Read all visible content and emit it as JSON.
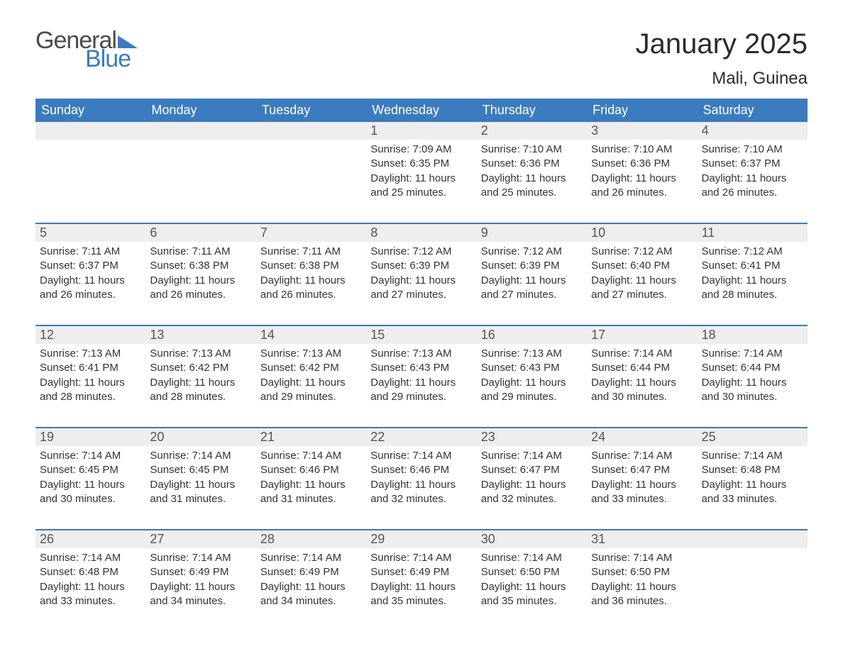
{
  "brand": {
    "part1": "General",
    "part2": "Blue"
  },
  "title": "January 2025",
  "location": "Mali, Guinea",
  "colors": {
    "brand_blue": "#3b7bbf",
    "header_bg": "#3b7bbf",
    "header_text": "#ffffff",
    "daynum_bg": "#eeeeee",
    "daynum_text": "#555555",
    "body_text": "#333333",
    "row_border": "#3b7bbf",
    "page_bg": "#ffffff"
  },
  "layout": {
    "columns": 7,
    "title_fontsize": 40,
    "location_fontsize": 24,
    "dayhead_fontsize": 18,
    "daynum_fontsize": 18,
    "cell_fontsize": 15
  },
  "day_headers": [
    "Sunday",
    "Monday",
    "Tuesday",
    "Wednesday",
    "Thursday",
    "Friday",
    "Saturday"
  ],
  "weeks": [
    [
      {
        "n": "",
        "lines": []
      },
      {
        "n": "",
        "lines": []
      },
      {
        "n": "",
        "lines": []
      },
      {
        "n": "1",
        "lines": [
          "Sunrise: 7:09 AM",
          "Sunset: 6:35 PM",
          "Daylight: 11 hours and 25 minutes."
        ]
      },
      {
        "n": "2",
        "lines": [
          "Sunrise: 7:10 AM",
          "Sunset: 6:36 PM",
          "Daylight: 11 hours and 25 minutes."
        ]
      },
      {
        "n": "3",
        "lines": [
          "Sunrise: 7:10 AM",
          "Sunset: 6:36 PM",
          "Daylight: 11 hours and 26 minutes."
        ]
      },
      {
        "n": "4",
        "lines": [
          "Sunrise: 7:10 AM",
          "Sunset: 6:37 PM",
          "Daylight: 11 hours and 26 minutes."
        ]
      }
    ],
    [
      {
        "n": "5",
        "lines": [
          "Sunrise: 7:11 AM",
          "Sunset: 6:37 PM",
          "Daylight: 11 hours and 26 minutes."
        ]
      },
      {
        "n": "6",
        "lines": [
          "Sunrise: 7:11 AM",
          "Sunset: 6:38 PM",
          "Daylight: 11 hours and 26 minutes."
        ]
      },
      {
        "n": "7",
        "lines": [
          "Sunrise: 7:11 AM",
          "Sunset: 6:38 PM",
          "Daylight: 11 hours and 26 minutes."
        ]
      },
      {
        "n": "8",
        "lines": [
          "Sunrise: 7:12 AM",
          "Sunset: 6:39 PM",
          "Daylight: 11 hours and 27 minutes."
        ]
      },
      {
        "n": "9",
        "lines": [
          "Sunrise: 7:12 AM",
          "Sunset: 6:39 PM",
          "Daylight: 11 hours and 27 minutes."
        ]
      },
      {
        "n": "10",
        "lines": [
          "Sunrise: 7:12 AM",
          "Sunset: 6:40 PM",
          "Daylight: 11 hours and 27 minutes."
        ]
      },
      {
        "n": "11",
        "lines": [
          "Sunrise: 7:12 AM",
          "Sunset: 6:41 PM",
          "Daylight: 11 hours and 28 minutes."
        ]
      }
    ],
    [
      {
        "n": "12",
        "lines": [
          "Sunrise: 7:13 AM",
          "Sunset: 6:41 PM",
          "Daylight: 11 hours and 28 minutes."
        ]
      },
      {
        "n": "13",
        "lines": [
          "Sunrise: 7:13 AM",
          "Sunset: 6:42 PM",
          "Daylight: 11 hours and 28 minutes."
        ]
      },
      {
        "n": "14",
        "lines": [
          "Sunrise: 7:13 AM",
          "Sunset: 6:42 PM",
          "Daylight: 11 hours and 29 minutes."
        ]
      },
      {
        "n": "15",
        "lines": [
          "Sunrise: 7:13 AM",
          "Sunset: 6:43 PM",
          "Daylight: 11 hours and 29 minutes."
        ]
      },
      {
        "n": "16",
        "lines": [
          "Sunrise: 7:13 AM",
          "Sunset: 6:43 PM",
          "Daylight: 11 hours and 29 minutes."
        ]
      },
      {
        "n": "17",
        "lines": [
          "Sunrise: 7:14 AM",
          "Sunset: 6:44 PM",
          "Daylight: 11 hours and 30 minutes."
        ]
      },
      {
        "n": "18",
        "lines": [
          "Sunrise: 7:14 AM",
          "Sunset: 6:44 PM",
          "Daylight: 11 hours and 30 minutes."
        ]
      }
    ],
    [
      {
        "n": "19",
        "lines": [
          "Sunrise: 7:14 AM",
          "Sunset: 6:45 PM",
          "Daylight: 11 hours and 30 minutes."
        ]
      },
      {
        "n": "20",
        "lines": [
          "Sunrise: 7:14 AM",
          "Sunset: 6:45 PM",
          "Daylight: 11 hours and 31 minutes."
        ]
      },
      {
        "n": "21",
        "lines": [
          "Sunrise: 7:14 AM",
          "Sunset: 6:46 PM",
          "Daylight: 11 hours and 31 minutes."
        ]
      },
      {
        "n": "22",
        "lines": [
          "Sunrise: 7:14 AM",
          "Sunset: 6:46 PM",
          "Daylight: 11 hours and 32 minutes."
        ]
      },
      {
        "n": "23",
        "lines": [
          "Sunrise: 7:14 AM",
          "Sunset: 6:47 PM",
          "Daylight: 11 hours and 32 minutes."
        ]
      },
      {
        "n": "24",
        "lines": [
          "Sunrise: 7:14 AM",
          "Sunset: 6:47 PM",
          "Daylight: 11 hours and 33 minutes."
        ]
      },
      {
        "n": "25",
        "lines": [
          "Sunrise: 7:14 AM",
          "Sunset: 6:48 PM",
          "Daylight: 11 hours and 33 minutes."
        ]
      }
    ],
    [
      {
        "n": "26",
        "lines": [
          "Sunrise: 7:14 AM",
          "Sunset: 6:48 PM",
          "Daylight: 11 hours and 33 minutes."
        ]
      },
      {
        "n": "27",
        "lines": [
          "Sunrise: 7:14 AM",
          "Sunset: 6:49 PM",
          "Daylight: 11 hours and 34 minutes."
        ]
      },
      {
        "n": "28",
        "lines": [
          "Sunrise: 7:14 AM",
          "Sunset: 6:49 PM",
          "Daylight: 11 hours and 34 minutes."
        ]
      },
      {
        "n": "29",
        "lines": [
          "Sunrise: 7:14 AM",
          "Sunset: 6:49 PM",
          "Daylight: 11 hours and 35 minutes."
        ]
      },
      {
        "n": "30",
        "lines": [
          "Sunrise: 7:14 AM",
          "Sunset: 6:50 PM",
          "Daylight: 11 hours and 35 minutes."
        ]
      },
      {
        "n": "31",
        "lines": [
          "Sunrise: 7:14 AM",
          "Sunset: 6:50 PM",
          "Daylight: 11 hours and 36 minutes."
        ]
      },
      {
        "n": "",
        "lines": []
      }
    ]
  ]
}
